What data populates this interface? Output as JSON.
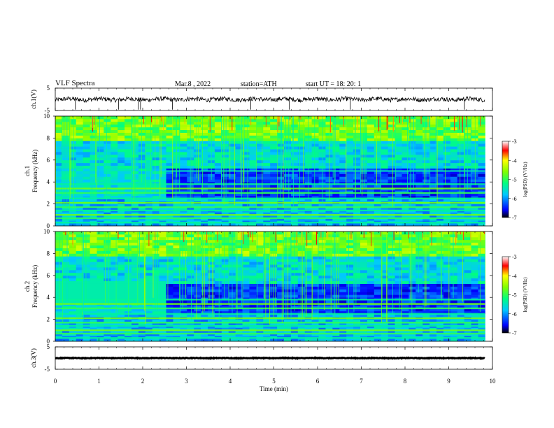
{
  "header": {
    "title": "VLF  Spectra",
    "date": "Mar.8  , 2022",
    "station": "station=ATH",
    "start": "start  UT  =    18: 20: 1"
  },
  "chart_data": [
    {
      "type": "line",
      "id": "ch1_wave",
      "ylabel": "ch.1(V)",
      "ylim": [
        -5,
        5
      ],
      "yticks": [
        "5",
        "-5"
      ],
      "xlim": [
        0,
        10
      ],
      "baseline": 0,
      "noise_amplitude": 1.0,
      "spikes": [
        0.46,
        1.45,
        1.9,
        1.95,
        2.68,
        4.47,
        5.35,
        6.75,
        9.36
      ]
    },
    {
      "type": "heatmap",
      "id": "ch1_spec",
      "ylabel": "ch.1\nFrequency  (kHz)",
      "ylim": [
        0,
        10
      ],
      "yticks": [
        "10",
        "8",
        "6",
        "4",
        "2",
        "0"
      ],
      "xlim": [
        0,
        9.83
      ],
      "colorbar": {
        "label": "log(PSD) (V²/Hz)",
        "range": [
          -7,
          -3
        ],
        "ticks": [
          "-3",
          "-4",
          "-5",
          "-6",
          "-7"
        ]
      },
      "transition_min": 2.5
    },
    {
      "type": "heatmap",
      "id": "ch2_spec",
      "ylabel": "ch.2\nFrequency  (kHz)",
      "ylim": [
        0,
        10
      ],
      "yticks": [
        "10",
        "8",
        "6",
        "4",
        "2",
        "0"
      ],
      "xlim": [
        0,
        9.83
      ],
      "colorbar": {
        "label": "log(PSD) (V²/Hz)",
        "range": [
          -7,
          -3
        ],
        "ticks": [
          "-3",
          "-4",
          "-5",
          "-6",
          "-7"
        ]
      },
      "transition_min": 2.5
    },
    {
      "type": "line",
      "id": "ch3_wave",
      "ylabel": "ch.3(V)",
      "ylim": [
        -5,
        5
      ],
      "yticks": [
        "5",
        "-5"
      ],
      "xlim": [
        0,
        10
      ],
      "baseline": 0,
      "noise_amplitude": 0.15
    }
  ],
  "xaxis": {
    "label": "Time  (min)",
    "ticks": [
      "0",
      "1",
      "2",
      "3",
      "4",
      "5",
      "6",
      "7",
      "8",
      "9",
      "10"
    ]
  }
}
